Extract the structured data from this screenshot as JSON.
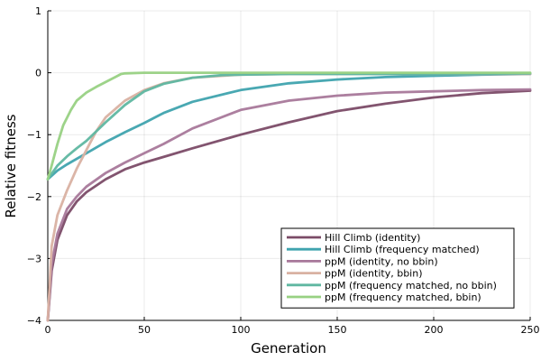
{
  "chart_data": {
    "type": "line",
    "xlabel": "Generation",
    "ylabel": "Relative fitness",
    "xlim": [
      0,
      250
    ],
    "ylim": [
      -4,
      1
    ],
    "x_ticks": [
      0,
      50,
      100,
      150,
      200,
      250
    ],
    "y_ticks": [
      -4,
      -3,
      -2,
      -1,
      0,
      1
    ],
    "x_tick_labels": [
      "0",
      "50",
      "100",
      "150",
      "200",
      "250"
    ],
    "y_tick_labels": [
      "−4",
      "−3",
      "−2",
      "−1",
      "0",
      "1"
    ],
    "grid": true,
    "legend_position": "bottom-right",
    "series": [
      {
        "name": "Hill Climb (identity)",
        "color": "#7b4b67",
        "x": [
          0,
          2,
          5,
          10,
          15,
          20,
          30,
          40,
          50,
          60,
          75,
          100,
          125,
          150,
          175,
          200,
          225,
          250
        ],
        "y": [
          -4.0,
          -3.2,
          -2.7,
          -2.3,
          -2.08,
          -1.93,
          -1.72,
          -1.56,
          -1.45,
          -1.36,
          -1.22,
          -1.0,
          -0.8,
          -0.62,
          -0.5,
          -0.4,
          -0.33,
          -0.29
        ]
      },
      {
        "name": "Hill Climb (frequency matched)",
        "color": "#3fa3ae",
        "x": [
          0,
          5,
          10,
          20,
          30,
          40,
          50,
          60,
          75,
          100,
          125,
          150,
          175,
          200,
          225,
          250
        ],
        "y": [
          -1.72,
          -1.58,
          -1.48,
          -1.3,
          -1.12,
          -0.96,
          -0.81,
          -0.65,
          -0.47,
          -0.28,
          -0.17,
          -0.11,
          -0.07,
          -0.05,
          -0.03,
          -0.02
        ]
      },
      {
        "name": "ppM (identity, no bbin)",
        "color": "#a8789a",
        "x": [
          0,
          2,
          5,
          10,
          15,
          20,
          30,
          40,
          50,
          60,
          75,
          100,
          125,
          150,
          175,
          200,
          225,
          250
        ],
        "y": [
          -4.0,
          -3.1,
          -2.6,
          -2.2,
          -2.0,
          -1.84,
          -1.62,
          -1.45,
          -1.3,
          -1.15,
          -0.9,
          -0.6,
          -0.45,
          -0.37,
          -0.32,
          -0.3,
          -0.28,
          -0.27
        ]
      },
      {
        "name": "ppM (identity, bbin)",
        "color": "#d9b1a2",
        "x": [
          0,
          2,
          5,
          10,
          15,
          20,
          25,
          30,
          40,
          50,
          60,
          75,
          100,
          125,
          150,
          200,
          250
        ],
        "y": [
          -4.0,
          -2.8,
          -2.3,
          -1.9,
          -1.55,
          -1.25,
          -0.95,
          -0.72,
          -0.45,
          -0.28,
          -0.17,
          -0.08,
          -0.03,
          -0.02,
          -0.02,
          -0.02,
          -0.02
        ]
      },
      {
        "name": "ppM (frequency matched, no bbin)",
        "color": "#5fb7a1",
        "x": [
          0,
          5,
          10,
          15,
          20,
          30,
          40,
          50,
          60,
          75,
          90,
          100,
          125,
          150,
          200,
          250
        ],
        "y": [
          -1.72,
          -1.5,
          -1.35,
          -1.22,
          -1.1,
          -0.8,
          -0.52,
          -0.3,
          -0.18,
          -0.08,
          -0.04,
          -0.03,
          -0.02,
          -0.02,
          -0.02,
          -0.01
        ]
      },
      {
        "name": "ppM (frequency matched, bbin)",
        "color": "#98d183",
        "x": [
          0,
          2,
          5,
          8,
          12,
          15,
          20,
          25,
          30,
          35,
          38,
          40,
          50,
          60,
          100,
          150,
          200,
          250
        ],
        "y": [
          -1.72,
          -1.5,
          -1.15,
          -0.85,
          -0.6,
          -0.45,
          -0.32,
          -0.23,
          -0.15,
          -0.07,
          -0.02,
          -0.01,
          0.0,
          0.0,
          0.0,
          0.0,
          0.0,
          0.0
        ]
      }
    ]
  }
}
